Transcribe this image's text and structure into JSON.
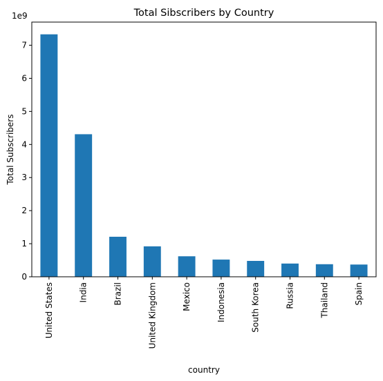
{
  "chart_data": {
    "type": "bar",
    "title": "Total Sibscribers by Country",
    "xlabel": "country",
    "ylabel": "Total Subscribers",
    "y_scale_label": "1e9",
    "y_scale": 1000000000,
    "categories": [
      "United States",
      "India",
      "Brazil",
      "United Kingdom",
      "Mexico",
      "Indonesia",
      "South Korea",
      "Russia",
      "Thailand",
      "Spain"
    ],
    "values": [
      7330000000,
      4310000000,
      1210000000,
      920000000,
      620000000,
      520000000,
      480000000,
      400000000,
      380000000,
      370000000
    ],
    "y_ticks": [
      0,
      1,
      2,
      3,
      4,
      5,
      6,
      7
    ],
    "ylim": [
      0,
      7700000000
    ],
    "grid": false,
    "legend": "none",
    "bar_color": "#1f77b4"
  }
}
